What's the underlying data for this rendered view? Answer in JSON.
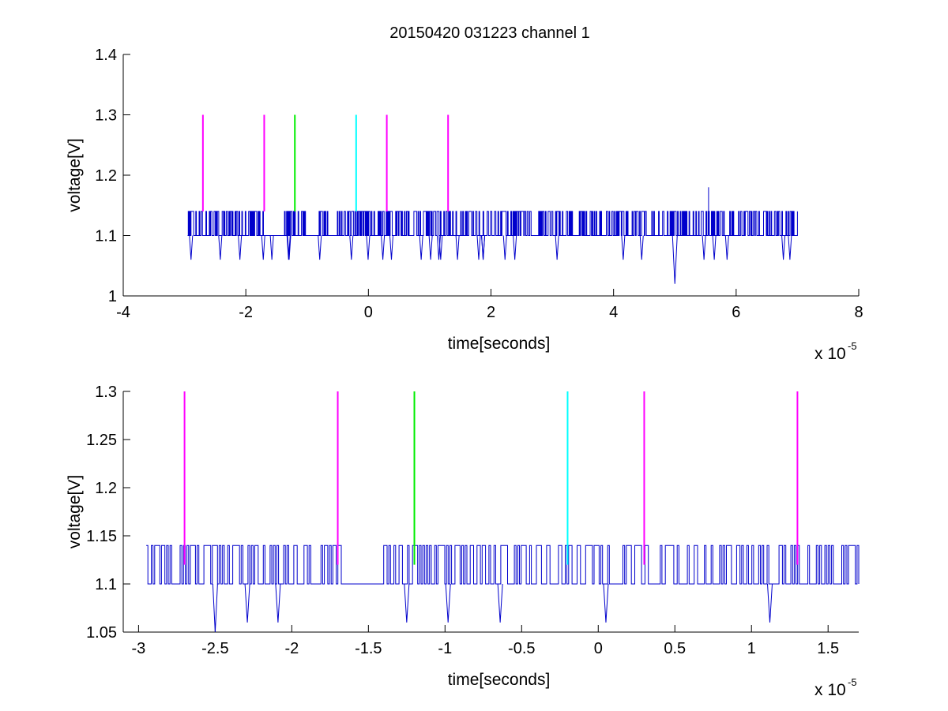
{
  "figure": {
    "title": "20150420 031223 channel 1",
    "background": "#ffffff"
  },
  "colors": {
    "signal": "#0000cc",
    "magenta": "#ff00ff",
    "green": "#00ee00",
    "cyan": "#00ffff",
    "axis": "#000000"
  },
  "chart_data": [
    {
      "type": "line",
      "title": "20150420 031223 channel 1",
      "xlabel": "time[seconds]",
      "ylabel": "voltage[V]",
      "x_exponent_label": "x 10",
      "x_exponent": "-5",
      "xlim": [
        -4e-05,
        8e-05
      ],
      "ylim": [
        1.0,
        1.4
      ],
      "xticks": [
        -4e-05,
        -2e-05,
        0,
        2e-05,
        4e-05,
        6e-05,
        8e-05
      ],
      "xtick_labels": [
        "-4",
        "-2",
        "0",
        "2",
        "4",
        "6",
        "8"
      ],
      "yticks": [
        1.0,
        1.1,
        1.2,
        1.3,
        1.4
      ],
      "ytick_labels": [
        "1",
        "1.1",
        "1.2",
        "1.3",
        "1.4"
      ],
      "grid": false,
      "series": [
        {
          "type": "step-noise",
          "color": "#0000cc",
          "x_range": [
            -2.95e-05,
            7e-05
          ],
          "baseline": 1.1,
          "high_level": 1.14,
          "dip_level": 1.06,
          "spikes": [
            {
              "x": 5.55e-05,
              "y": 1.18
            }
          ],
          "dips": [
            {
              "x": 5e-05,
              "y": 1.02
            }
          ]
        }
      ],
      "markers": [
        {
          "x": -2.7e-05,
          "y_from": 1.14,
          "y_to": 1.3,
          "color": "#ff00ff"
        },
        {
          "x": -1.7e-05,
          "y_from": 1.14,
          "y_to": 1.3,
          "color": "#ff00ff"
        },
        {
          "x": -1.2e-05,
          "y_from": 1.14,
          "y_to": 1.3,
          "color": "#00ee00"
        },
        {
          "x": -2e-06,
          "y_from": 1.14,
          "y_to": 1.3,
          "color": "#00ffff"
        },
        {
          "x": 3e-06,
          "y_from": 1.14,
          "y_to": 1.3,
          "color": "#ff00ff"
        },
        {
          "x": 1.3e-05,
          "y_from": 1.14,
          "y_to": 1.3,
          "color": "#ff00ff"
        }
      ]
    },
    {
      "type": "line",
      "title": "",
      "xlabel": "time[seconds]",
      "ylabel": "voltage[V]",
      "x_exponent_label": "x 10",
      "x_exponent": "-5",
      "xlim": [
        -3.1e-05,
        1.7e-05
      ],
      "ylim": [
        1.05,
        1.3
      ],
      "xticks": [
        -3e-05,
        -2.5e-05,
        -2e-05,
        -1.5e-05,
        -1e-05,
        -5e-06,
        0,
        5e-06,
        1e-05,
        1.5e-05
      ],
      "xtick_labels": [
        "-3",
        "-2.5",
        "-2",
        "-1.5",
        "-1",
        "-0.5",
        "0",
        "0.5",
        "1",
        "1.5"
      ],
      "yticks": [
        1.05,
        1.1,
        1.15,
        1.2,
        1.25,
        1.3
      ],
      "ytick_labels": [
        "1.05",
        "1.1",
        "1.15",
        "1.2",
        "1.25",
        "1.3"
      ],
      "grid": false,
      "series": [
        {
          "type": "step-noise",
          "color": "#0000cc",
          "x_range": [
            -2.95e-05,
            1.7e-05
          ],
          "baseline": 1.1,
          "high_level": 1.14,
          "dip_level": 1.06,
          "dips": [
            {
              "x": -2.5e-05,
              "y": 1.05
            },
            {
              "x": -2.29e-05,
              "y": 1.06
            },
            {
              "x": -2.09e-05,
              "y": 1.06
            },
            {
              "x": -1.25e-05,
              "y": 1.06
            },
            {
              "x": -9.8e-06,
              "y": 1.06
            },
            {
              "x": -6.4e-06,
              "y": 1.06
            },
            {
              "x": 5e-07,
              "y": 1.06
            },
            {
              "x": 1.12e-05,
              "y": 1.06
            }
          ]
        }
      ],
      "markers": [
        {
          "x": -2.7e-05,
          "y_from": 1.12,
          "y_to": 1.3,
          "color": "#ff00ff"
        },
        {
          "x": -1.7e-05,
          "y_from": 1.12,
          "y_to": 1.3,
          "color": "#ff00ff"
        },
        {
          "x": -1.2e-05,
          "y_from": 1.12,
          "y_to": 1.3,
          "color": "#00ee00"
        },
        {
          "x": -2e-06,
          "y_from": 1.12,
          "y_to": 1.3,
          "color": "#00ffff"
        },
        {
          "x": 3e-06,
          "y_from": 1.12,
          "y_to": 1.3,
          "color": "#ff00ff"
        },
        {
          "x": 1.3e-05,
          "y_from": 1.12,
          "y_to": 1.3,
          "color": "#ff00ff"
        }
      ]
    }
  ]
}
